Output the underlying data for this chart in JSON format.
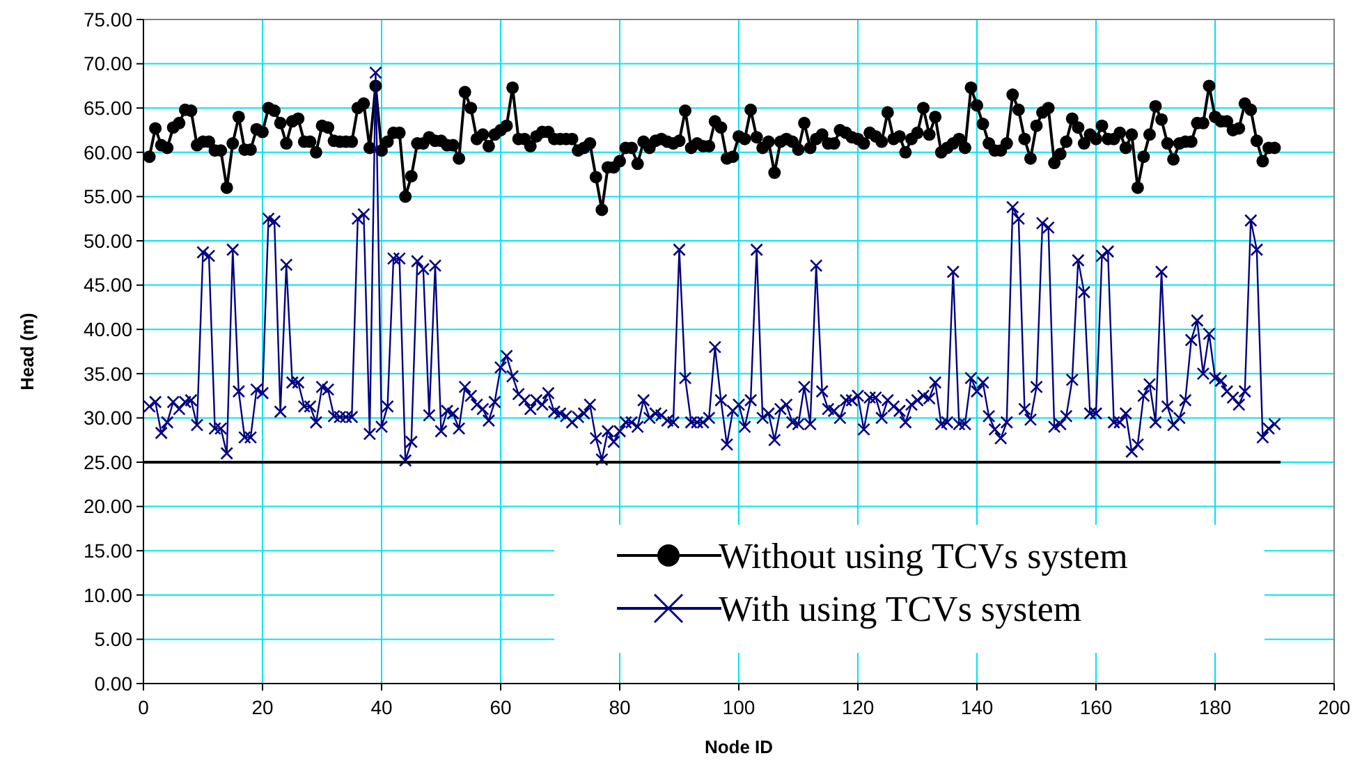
{
  "chart_data": {
    "type": "line",
    "xlabel": "Node ID",
    "ylabel": "Head (m)",
    "xlim": [
      0,
      200
    ],
    "xticks": [
      0,
      20,
      40,
      60,
      80,
      100,
      120,
      140,
      160,
      180,
      200
    ],
    "ylim": [
      0,
      75
    ],
    "yticks": [
      {
        "value": 0,
        "label": "0.00"
      },
      {
        "value": 5,
        "label": "5.00"
      },
      {
        "value": 10,
        "label": "10.00"
      },
      {
        "value": 15,
        "label": "15.00"
      },
      {
        "value": 20,
        "label": "20.00"
      },
      {
        "value": 25,
        "label": "25.00"
      },
      {
        "value": 30,
        "label": "30.00"
      },
      {
        "value": 35,
        "label": "35.00"
      },
      {
        "value": 40,
        "label": "40.00"
      },
      {
        "value": 45,
        "label": "45.00"
      },
      {
        "value": 50,
        "label": "50.00"
      },
      {
        "value": 55,
        "label": "55.00"
      },
      {
        "value": 60,
        "label": "60.00"
      },
      {
        "value": 65,
        "label": "65.00"
      },
      {
        "value": 70,
        "label": "70.00"
      },
      {
        "value": 75,
        "label": "75.00"
      }
    ],
    "grid": true,
    "legend": "bottom right",
    "series": [
      {
        "name": "Without using TCVs system",
        "color": "#000000",
        "marker": "circle",
        "x": [
          1,
          2,
          3,
          4,
          5,
          6,
          7,
          8,
          9,
          10,
          11,
          12,
          13,
          14,
          15,
          16,
          17,
          18,
          19,
          20,
          21,
          22,
          23,
          24,
          25,
          26,
          27,
          28,
          29,
          30,
          31,
          32,
          33,
          34,
          35,
          36,
          37,
          38,
          39,
          40,
          41,
          42,
          43,
          44,
          45,
          46,
          47,
          48,
          49,
          50,
          51,
          52,
          53,
          54,
          55,
          56,
          57,
          58,
          59,
          60,
          61,
          62,
          63,
          64,
          65,
          66,
          67,
          68,
          69,
          70,
          71,
          72,
          73,
          74,
          75,
          76,
          77,
          78,
          79,
          80,
          81,
          82,
          83,
          84,
          85,
          86,
          87,
          88,
          89,
          90,
          91,
          92,
          93,
          94,
          95,
          96,
          97,
          98,
          99,
          100,
          101,
          102,
          103,
          104,
          105,
          106,
          107,
          108,
          109,
          110,
          111,
          112,
          113,
          114,
          115,
          116,
          117,
          118,
          119,
          120,
          121,
          122,
          123,
          124,
          125,
          126,
          127,
          128,
          129,
          130,
          131,
          132,
          133,
          134,
          135,
          136,
          137,
          138,
          139,
          140,
          141,
          142,
          143,
          144,
          145,
          146,
          147,
          148,
          149,
          150,
          151,
          152,
          153,
          154,
          155,
          156,
          157,
          158,
          159,
          160,
          161,
          162,
          163,
          164,
          165,
          166,
          167,
          168,
          169,
          170,
          171,
          172,
          173,
          174,
          175,
          176,
          177,
          178,
          179,
          180,
          181,
          182,
          183,
          184,
          185,
          186,
          187,
          188,
          189,
          190
        ],
        "values": [
          59.5,
          62.7,
          60.8,
          60.5,
          62.8,
          63.3,
          64.8,
          64.7,
          60.8,
          61.2,
          61.2,
          60.2,
          60.2,
          56,
          61,
          64,
          60.3,
          60.3,
          62.6,
          62.3,
          65,
          64.7,
          63.3,
          61,
          63.5,
          63.8,
          61.2,
          61.2,
          60,
          63,
          62.8,
          61.3,
          61.2,
          61.2,
          61.2,
          65,
          65.5,
          60.5,
          67.5,
          60.2,
          61.2,
          62.2,
          62.2,
          55,
          57.3,
          61,
          61,
          61.7,
          61.3,
          61.3,
          60.8,
          60.8,
          59.3,
          66.8,
          65,
          61.5,
          62,
          60.7,
          62,
          62.5,
          63,
          67.3,
          61.5,
          61.5,
          60.7,
          61.8,
          62.3,
          62.3,
          61.5,
          61.5,
          61.5,
          61.5,
          60.2,
          60.5,
          61,
          57.2,
          53.5,
          58.3,
          58.3,
          59,
          60.5,
          60.5,
          58.7,
          61.2,
          60.5,
          61.3,
          61.5,
          61.2,
          61,
          61.3,
          64.7,
          60.5,
          61,
          60.7,
          60.7,
          63.5,
          62.8,
          59.3,
          59.5,
          61.8,
          61.5,
          64.8,
          61.7,
          60.5,
          61.2,
          57.7,
          61.2,
          61.5,
          61.2,
          60.3,
          63.3,
          60.5,
          61.5,
          62,
          61,
          61,
          62.5,
          62.2,
          61.7,
          61.5,
          61,
          62.2,
          61.8,
          61.2,
          64.5,
          61.5,
          61.8,
          60,
          61.5,
          62.2,
          65,
          62,
          64,
          60,
          60.5,
          61,
          61.5,
          60.5,
          67.3,
          65.3,
          63.2,
          61,
          60.2,
          60.2,
          61,
          66.5,
          64.8,
          61.5,
          59.3,
          63,
          64.5,
          65,
          58.8,
          59.8,
          61.2,
          63.8,
          62.8,
          61,
          62,
          61.5,
          63,
          61.5,
          61.5,
          62.2,
          60.5,
          62,
          56,
          59.5,
          62,
          65.2,
          63.7,
          61,
          59.2,
          61,
          61.2,
          61.2,
          63.3,
          63.3,
          67.5,
          64,
          63.5,
          63.5,
          62.5,
          62.7,
          65.5,
          64.8,
          61.3,
          59,
          60.5,
          60.5
        ]
      },
      {
        "name": "With using TCVs system",
        "color": "#000080",
        "marker": "cross",
        "x": [
          1,
          2,
          3,
          4,
          5,
          6,
          7,
          8,
          9,
          10,
          11,
          12,
          13,
          14,
          15,
          16,
          17,
          18,
          19,
          20,
          21,
          22,
          23,
          24,
          25,
          26,
          27,
          28,
          29,
          30,
          31,
          32,
          33,
          34,
          35,
          36,
          37,
          38,
          39,
          40,
          41,
          42,
          43,
          44,
          45,
          46,
          47,
          48,
          49,
          50,
          51,
          52,
          53,
          54,
          55,
          56,
          57,
          58,
          59,
          60,
          61,
          62,
          63,
          64,
          65,
          66,
          67,
          68,
          69,
          70,
          71,
          72,
          73,
          74,
          75,
          76,
          77,
          78,
          79,
          80,
          81,
          82,
          83,
          84,
          85,
          86,
          87,
          88,
          89,
          90,
          91,
          92,
          93,
          94,
          95,
          96,
          97,
          98,
          99,
          100,
          101,
          102,
          103,
          104,
          105,
          106,
          107,
          108,
          109,
          110,
          111,
          112,
          113,
          114,
          115,
          116,
          117,
          118,
          119,
          120,
          121,
          122,
          123,
          124,
          125,
          126,
          127,
          128,
          129,
          130,
          131,
          132,
          133,
          134,
          135,
          136,
          137,
          138,
          139,
          140,
          141,
          142,
          143,
          144,
          145,
          146,
          147,
          148,
          149,
          150,
          151,
          152,
          153,
          154,
          155,
          156,
          157,
          158,
          159,
          160,
          161,
          162,
          163,
          164,
          165,
          166,
          167,
          168,
          169,
          170,
          171,
          172,
          173,
          174,
          175,
          176,
          177,
          178,
          179,
          180,
          181,
          182,
          183,
          184,
          185,
          186,
          187,
          188,
          189,
          190
        ],
        "values": [
          31.3,
          31.8,
          28.3,
          29.5,
          31.8,
          31,
          31.8,
          32,
          29.2,
          48.7,
          48.3,
          28.8,
          28.8,
          26,
          49,
          33,
          27.8,
          27.8,
          33.2,
          32.8,
          52.5,
          52.2,
          30.7,
          47.3,
          34,
          34,
          31.3,
          31.3,
          29.5,
          33.5,
          33.2,
          30.2,
          30.1,
          30.1,
          30.1,
          52.5,
          53,
          28.2,
          69,
          29,
          31.3,
          48,
          48,
          25.2,
          27.3,
          47.7,
          46.8,
          30.3,
          47.2,
          28.5,
          30.8,
          30.5,
          28.8,
          33.5,
          32.5,
          31.5,
          31,
          29.7,
          31.8,
          35.7,
          37,
          34.7,
          32.7,
          32,
          31,
          32,
          31.5,
          32.8,
          30.7,
          30.5,
          30.2,
          29.5,
          30.1,
          30.5,
          31.5,
          27.7,
          25.3,
          28.5,
          27.3,
          28.5,
          29.5,
          29.5,
          29,
          32,
          30,
          30.5,
          30.3,
          29.7,
          29.5,
          49,
          34.5,
          29.5,
          29.5,
          29.5,
          30,
          38,
          32,
          27,
          30.8,
          31.5,
          29,
          32,
          49,
          30,
          30.5,
          27.5,
          31,
          31.5,
          29.5,
          29.3,
          33.5,
          29.3,
          47.2,
          33,
          31,
          30.8,
          30,
          32,
          32,
          32.5,
          28.7,
          32.3,
          32.3,
          30,
          32,
          31.3,
          30.8,
          29.5,
          31.5,
          32,
          32.5,
          32.2,
          34,
          29.3,
          29.5,
          46.5,
          29.3,
          29.3,
          34.5,
          33,
          34,
          30.2,
          28.7,
          27.7,
          29.5,
          53.8,
          52.5,
          31,
          29.8,
          33.5,
          52,
          51.5,
          29,
          29.3,
          30.2,
          34.3,
          47.8,
          44.2,
          30.5,
          30.5,
          48.3,
          48.8,
          29.5,
          29.5,
          30.5,
          26.2,
          27,
          32.5,
          33.8,
          29.5,
          46.5,
          31.3,
          29.2,
          30,
          32,
          38.8,
          41,
          35,
          39.5,
          34.5,
          34.2,
          33,
          32.3,
          31.5,
          33,
          52.3,
          49,
          27.8,
          28.8,
          29.3
        ]
      },
      {
        "color": "#000000",
        "marker": "none",
        "x": [
          0,
          191
        ],
        "values": [
          25,
          25
        ]
      }
    ]
  }
}
